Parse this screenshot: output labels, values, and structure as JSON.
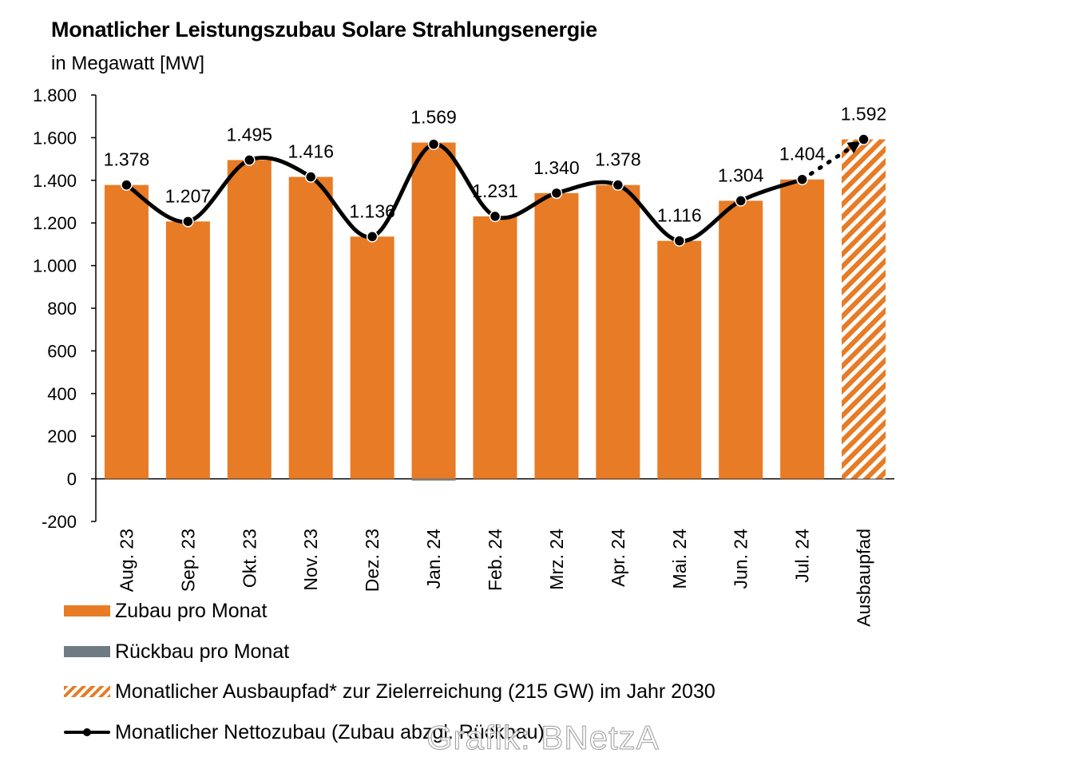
{
  "chart_data": {
    "type": "bar",
    "title": "Monatlicher Leistungszubau Solare Strahlungsenergie",
    "subtitle": "in Megawatt [MW]",
    "categories": [
      "Aug. 23",
      "Sep. 23",
      "Okt. 23",
      "Nov. 23",
      "Dez. 23",
      "Jan. 24",
      "Feb. 24",
      "Mrz. 24",
      "Apr. 24",
      "Mai. 24",
      "Jun. 24",
      "Jul. 24",
      "Ausbaupfad"
    ],
    "ylim": [
      -200,
      1800
    ],
    "yticks": [
      -200,
      0,
      200,
      400,
      600,
      800,
      1000,
      1200,
      1400,
      1600,
      1800
    ],
    "ytick_labels": [
      "-200",
      "0",
      "200",
      "400",
      "600",
      "800",
      "1.000",
      "1.200",
      "1.400",
      "1.600",
      "1.800"
    ],
    "series": [
      {
        "name": "Zubau pro Monat",
        "type": "bar",
        "color": "#E87B25",
        "values": [
          1378,
          1207,
          1495,
          1416,
          1136,
          1577,
          1231,
          1340,
          1378,
          1116,
          1304,
          1404,
          null
        ]
      },
      {
        "name": "Rückbau pro Monat",
        "type": "bar",
        "color": "#6F7B83",
        "values": [
          0,
          0,
          0,
          0,
          0,
          -8,
          0,
          0,
          0,
          0,
          0,
          0,
          null
        ]
      },
      {
        "name": "Monatlicher Ausbaupfad* zur Zielerreichung (215 GW) im Jahr 2030",
        "type": "bar-hatched",
        "color": "#E87B25",
        "values": [
          null,
          null,
          null,
          null,
          null,
          null,
          null,
          null,
          null,
          null,
          null,
          null,
          1592
        ]
      },
      {
        "name": "Monatlicher Nettozubau (Zubau abzgl. Rückbau)",
        "type": "line",
        "color": "#000000",
        "values": [
          1378,
          1207,
          1495,
          1416,
          1136,
          1569,
          1231,
          1340,
          1378,
          1116,
          1304,
          1404,
          1592
        ]
      }
    ],
    "data_labels": [
      "1.378",
      "1.207",
      "1.495",
      "1.416",
      "1.136",
      "1.569",
      "1.231",
      "1.340",
      "1.378",
      "1.116",
      "1.304",
      "1.404",
      "1.592"
    ]
  },
  "legend": {
    "zubau": "Zubau pro Monat",
    "rueckbau": "Rückbau pro Monat",
    "ausbaupfad": "Monatlicher Ausbaupfad* zur Zielerreichung (215 GW) im Jahr 2030",
    "netto": "Monatlicher Nettozubau (Zubau abzgl. Rückbau)"
  },
  "credit": "Grafik: BNetzA"
}
